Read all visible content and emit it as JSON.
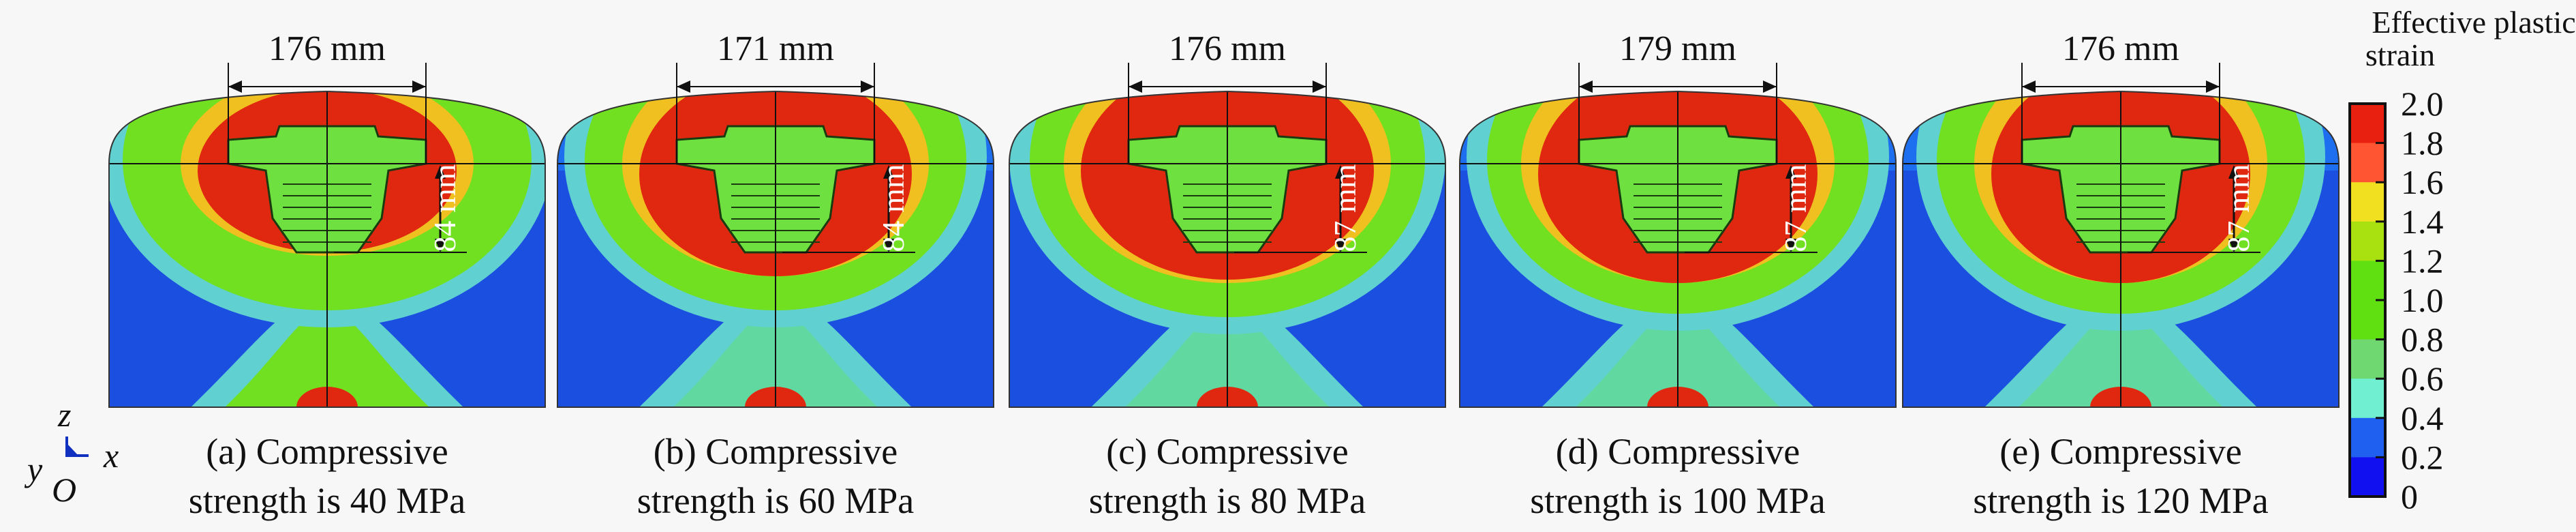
{
  "panels": [
    {
      "caption_line1": "(a) Compressive",
      "caption_line2": "strength is 40 MPa",
      "width_label": "176 mm",
      "depth_label": "84 mm"
    },
    {
      "caption_line1": "(b) Compressive",
      "caption_line2": "strength is 60 MPa",
      "width_label": "171 mm",
      "depth_label": "84 mm"
    },
    {
      "caption_line1": "(c) Compressive",
      "caption_line2": "strength is 80 MPa",
      "width_label": "176 mm",
      "depth_label": "87 mm"
    },
    {
      "caption_line1": "(d) Compressive",
      "caption_line2": "strength is 100 MPa",
      "width_label": "179 mm",
      "depth_label": "87 mm"
    },
    {
      "caption_line1": "(e) Compressive",
      "caption_line2": "strength is 120 MPa",
      "width_label": "176 mm",
      "depth_label": "87 mm"
    }
  ],
  "axes_triad": {
    "z": "z",
    "x": "x",
    "y": "y",
    "origin": "O"
  },
  "colorbar": {
    "title_line1": "Effective plastic",
    "title_line2": "strain",
    "ticks": [
      "2.0",
      "1.8",
      "1.6",
      "1.4",
      "1.2",
      "1.0",
      "0.8",
      "0.6",
      "0.4",
      "0.2",
      "0"
    ],
    "colors": [
      "#e82010",
      "#ff5533",
      "#f0e020",
      "#a8e010",
      "#60e010",
      "#60e010",
      "#70d870",
      "#70f0d0",
      "#2060f0",
      "#1010f0"
    ]
  }
}
